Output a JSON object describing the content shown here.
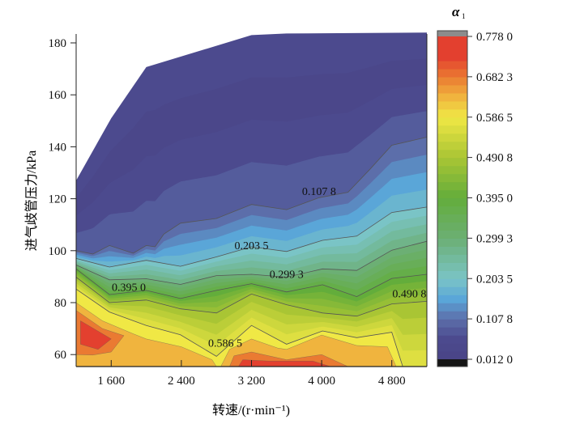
{
  "chart_data": {
    "type": "contour",
    "title": "",
    "xlabel": "转速/(r·min⁻¹)",
    "ylabel": "进气歧管压力/kPa",
    "xlim": [
      1200,
      5200
    ],
    "ylim": [
      55.4,
      185
    ],
    "x_ticks": [
      1600,
      2400,
      3200,
      4000,
      4800
    ],
    "x_tick_labels": [
      "1 600",
      "2 400",
      "3 200",
      "4 000",
      "4 800"
    ],
    "y_ticks": [
      60,
      80,
      100,
      120,
      140,
      160,
      180
    ],
    "y_tick_labels": [
      "60",
      "80",
      "100",
      "120",
      "140",
      "160",
      "180"
    ],
    "grid": false,
    "colorbar": {
      "title": "α",
      "title_sub": "1",
      "levels": [
        0.778,
        0.6823,
        0.5865,
        0.4908,
        0.395,
        0.2993,
        0.2035,
        0.1078,
        0.012
      ],
      "labels": [
        "0.778 0",
        "0.682 3",
        "0.586 5",
        "0.490 8",
        "0.395 0",
        "0.299 3",
        "0.203 5",
        "0.107 8",
        "0.012 0"
      ],
      "colors": {
        "0.012": "#4a4487",
        "0.06": "#4c4a8e",
        "0.1078": "#5c6eaa",
        "0.155": "#5aa6d8",
        "0.2035": "#7ac4c6",
        "0.2993": "#6caf74",
        "0.395": "#63ad3b",
        "0.4908": "#a9c534",
        "0.5865": "#f0e845",
        "0.634": "#f0b43e",
        "0.6823": "#ea7a32",
        "0.73": "#e3402f"
      },
      "over_color": "#8c8c8c",
      "under_color": "#151515"
    },
    "data_boundary_top": [
      [
        1200,
        127
      ],
      [
        1600,
        151
      ],
      [
        2000,
        170.7
      ],
      [
        3200,
        183
      ],
      [
        3600,
        183.6
      ],
      [
        5200,
        184
      ]
    ],
    "contours": [
      {
        "level": 0.1078,
        "label": "0.107 8",
        "points": [
          [
            1200,
            100
          ],
          [
            1390,
            98.7
          ],
          [
            1580,
            102
          ],
          [
            1850,
            99
          ],
          [
            2000,
            102
          ],
          [
            2100,
            101.5
          ],
          [
            2200,
            106.4
          ],
          [
            2390,
            110.6
          ],
          [
            2800,
            112.4
          ],
          [
            3200,
            117.8
          ],
          [
            3600,
            115.8
          ],
          [
            3970,
            120.4
          ],
          [
            4300,
            122.5
          ],
          [
            4550,
            131.3
          ],
          [
            4800,
            140.6
          ],
          [
            5200,
            143.7
          ]
        ]
      },
      {
        "level": 0.2035,
        "label": "0.203 5",
        "points": [
          [
            1200,
            97
          ],
          [
            1580,
            93.7
          ],
          [
            2000,
            96.3
          ],
          [
            2390,
            94
          ],
          [
            2800,
            97.6
          ],
          [
            3200,
            101.5
          ],
          [
            3600,
            99.7
          ],
          [
            4010,
            104
          ],
          [
            4400,
            105.6
          ],
          [
            4800,
            114.7
          ],
          [
            5200,
            116.8
          ]
        ]
      },
      {
        "level": 0.2993,
        "label": "0.299 3",
        "points": [
          [
            1200,
            94.5
          ],
          [
            1580,
            88.8
          ],
          [
            2000,
            89.2
          ],
          [
            2390,
            87
          ],
          [
            2800,
            90.4
          ],
          [
            3200,
            90.9
          ],
          [
            3600,
            89.8
          ],
          [
            4010,
            93
          ],
          [
            4400,
            92.4
          ],
          [
            4800,
            100.2
          ],
          [
            5200,
            103.6
          ]
        ]
      },
      {
        "level": 0.395,
        "label": "0.395 0",
        "points": [
          [
            1200,
            93
          ],
          [
            1580,
            83.1
          ],
          [
            2000,
            84.7
          ],
          [
            2390,
            81.6
          ],
          [
            2800,
            84.7
          ],
          [
            3200,
            87.3
          ],
          [
            3600,
            84.1
          ],
          [
            4010,
            86.9
          ],
          [
            4400,
            82.3
          ],
          [
            4800,
            89.3
          ],
          [
            5200,
            90.9
          ]
        ]
      },
      {
        "level": 0.4908,
        "label": "0.490 8",
        "points": [
          [
            1200,
            89.8
          ],
          [
            1580,
            80
          ],
          [
            2000,
            81
          ],
          [
            2390,
            77.6
          ],
          [
            2800,
            76
          ],
          [
            3200,
            83.3
          ],
          [
            3600,
            79.2
          ],
          [
            4010,
            76
          ],
          [
            4400,
            74.8
          ],
          [
            4800,
            79.5
          ],
          [
            5200,
            80.5
          ]
        ]
      },
      {
        "level": 0.5865,
        "label": "0.586 5",
        "points": [
          [
            1200,
            85.2
          ],
          [
            1580,
            76.4
          ],
          [
            2000,
            71.2
          ],
          [
            2390,
            67.6
          ],
          [
            2800,
            59.3
          ],
          [
            3200,
            71.2
          ],
          [
            3600,
            64
          ],
          [
            4010,
            69.1
          ],
          [
            4400,
            66.5
          ],
          [
            4800,
            68.6
          ],
          [
            4925,
            55.4
          ],
          [
            5200,
            55.4
          ]
        ]
      }
    ],
    "regions": [
      {
        "level": 0.634,
        "points": [
          [
            1200,
            80
          ],
          [
            1500,
            73
          ],
          [
            1850,
            68
          ],
          [
            2000,
            66
          ],
          [
            2400,
            63
          ],
          [
            2750,
            58
          ],
          [
            2800,
            55.4
          ],
          [
            1200,
            55.4
          ]
        ]
      },
      {
        "level": 0.634,
        "points": [
          [
            2850,
            55.4
          ],
          [
            2950,
            62
          ],
          [
            3200,
            66
          ],
          [
            3500,
            62.5
          ],
          [
            3600,
            62
          ],
          [
            4000,
            67.5
          ],
          [
            4400,
            63.5
          ],
          [
            4750,
            63
          ],
          [
            4850,
            55.4
          ]
        ]
      },
      {
        "level": 0.6823,
        "points": [
          [
            1200,
            77
          ],
          [
            1500,
            70
          ],
          [
            1745,
            67.3
          ],
          [
            1600,
            61
          ],
          [
            1390,
            59.8
          ],
          [
            1200,
            60
          ]
        ]
      },
      {
        "level": 0.6823,
        "points": [
          [
            2950,
            55.4
          ],
          [
            3000,
            59.5
          ],
          [
            3200,
            61
          ],
          [
            3600,
            58
          ],
          [
            4000,
            60
          ],
          [
            4300,
            55.4
          ]
        ]
      },
      {
        "level": 0.73,
        "points": [
          [
            1250,
            73
          ],
          [
            1600,
            66
          ],
          [
            1450,
            62
          ],
          [
            1250,
            64
          ]
        ]
      },
      {
        "level": 0.73,
        "points": [
          [
            3050,
            55.4
          ],
          [
            3100,
            58
          ],
          [
            3400,
            57.5
          ],
          [
            3900,
            57.5
          ],
          [
            4100,
            55.4
          ]
        ]
      }
    ]
  }
}
